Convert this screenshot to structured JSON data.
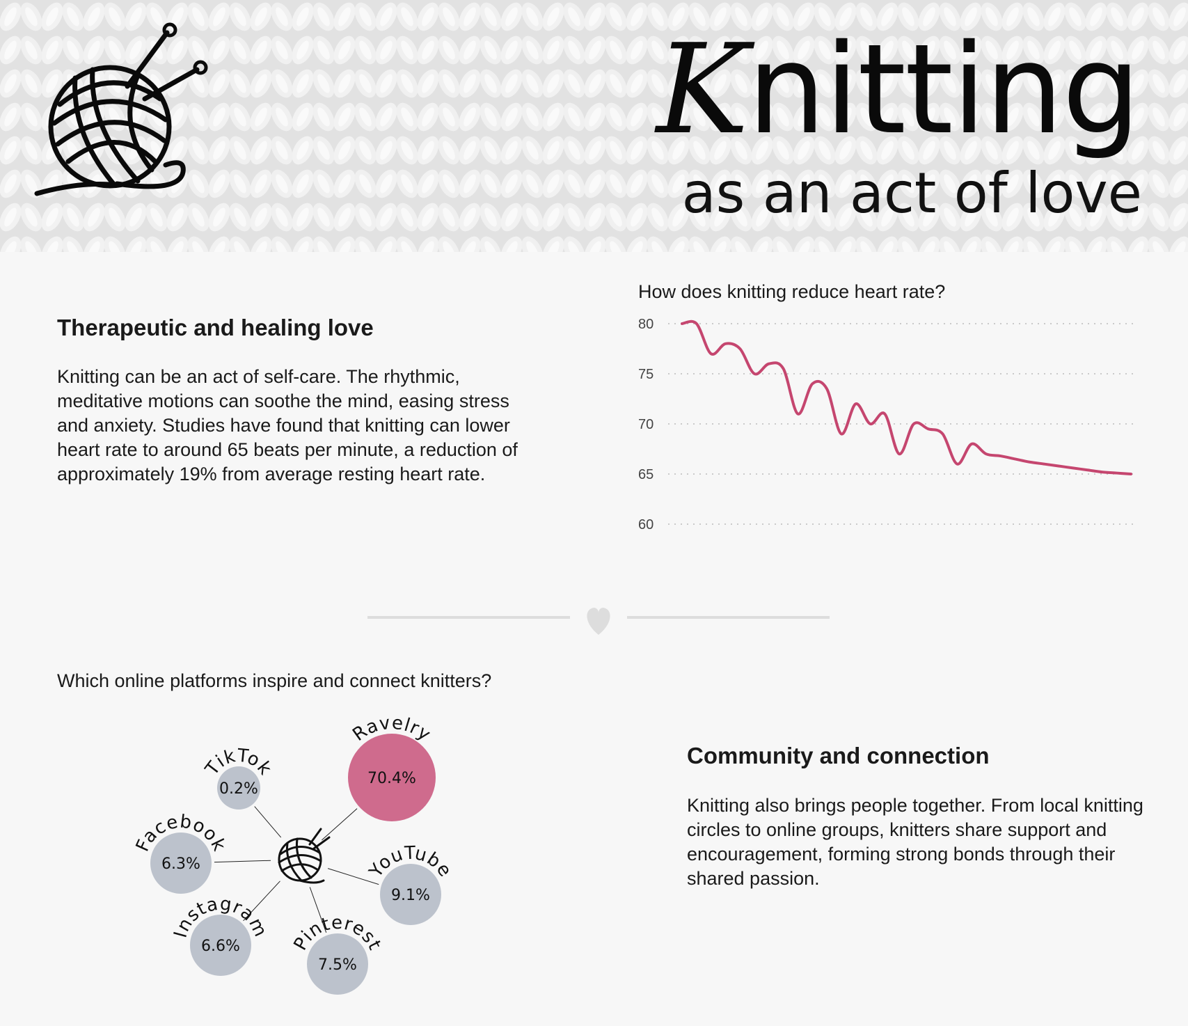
{
  "header": {
    "title_first_letter": "K",
    "title_rest": "nitting",
    "subtitle": "as an act of love",
    "logo_icon": "yarn-ball-with-needles-icon"
  },
  "therapeutic": {
    "heading": "Therapeutic and healing love",
    "body": "Knitting can be an act of self-care. The rhythmic, meditative motions can soothe the mind, easing stress and anxiety. Studies have found that knitting can lower heart rate to around 65 beats per minute, a reduction of approximately 19% from average resting heart rate."
  },
  "community": {
    "heading": "Community and connection",
    "body": "Knitting also brings people together. From local knitting circles to online groups, knitters share support and encouragement, forming strong bonds through their shared passion."
  },
  "divider": {
    "icon": "heart-icon"
  },
  "colors": {
    "accent": "#c5466f",
    "ravelry": "#cf6b8d",
    "bubble_default": "#bcc2cc",
    "gridline": "#bbbbbb",
    "divider": "#dddddd"
  },
  "chart_data": [
    {
      "type": "line",
      "title": "How does knitting reduce heart rate?",
      "xlabel": "",
      "ylabel": "",
      "ylim": [
        60,
        80
      ],
      "yticks": [
        "80",
        "75",
        "70",
        "65",
        "60"
      ],
      "grid": true,
      "series": [
        {
          "x": [
            0,
            1,
            2,
            3,
            4,
            5,
            6,
            7,
            8,
            9,
            10,
            11,
            12,
            13,
            14,
            15,
            16,
            17,
            18,
            19,
            20,
            21,
            22,
            23,
            24,
            25,
            26,
            27,
            28,
            29,
            30,
            31
          ],
          "values": [
            80,
            80,
            77,
            78,
            77.5,
            75,
            76,
            75.5,
            71,
            74,
            73.5,
            69,
            72,
            70,
            71,
            67,
            70,
            69.5,
            69,
            66,
            68,
            67,
            66.8,
            66.5,
            66.2,
            66,
            65.8,
            65.6,
            65.4,
            65.2,
            65.1,
            65
          ]
        }
      ]
    },
    {
      "type": "bubble",
      "title": "Which online platforms inspire and connect knitters?",
      "center_icon": "yarn-ball-icon",
      "items": [
        {
          "name": "Ravelry",
          "value": 70.4,
          "label": "70.4%"
        },
        {
          "name": "TikTok",
          "value": 0.2,
          "label": "0.2%"
        },
        {
          "name": "Facebook",
          "value": 6.3,
          "label": "6.3%"
        },
        {
          "name": "YouTube",
          "value": 9.1,
          "label": "9.1%"
        },
        {
          "name": "Instagram",
          "value": 6.6,
          "label": "6.6%"
        },
        {
          "name": "Pinterest",
          "value": 7.5,
          "label": "7.5%"
        }
      ]
    }
  ]
}
